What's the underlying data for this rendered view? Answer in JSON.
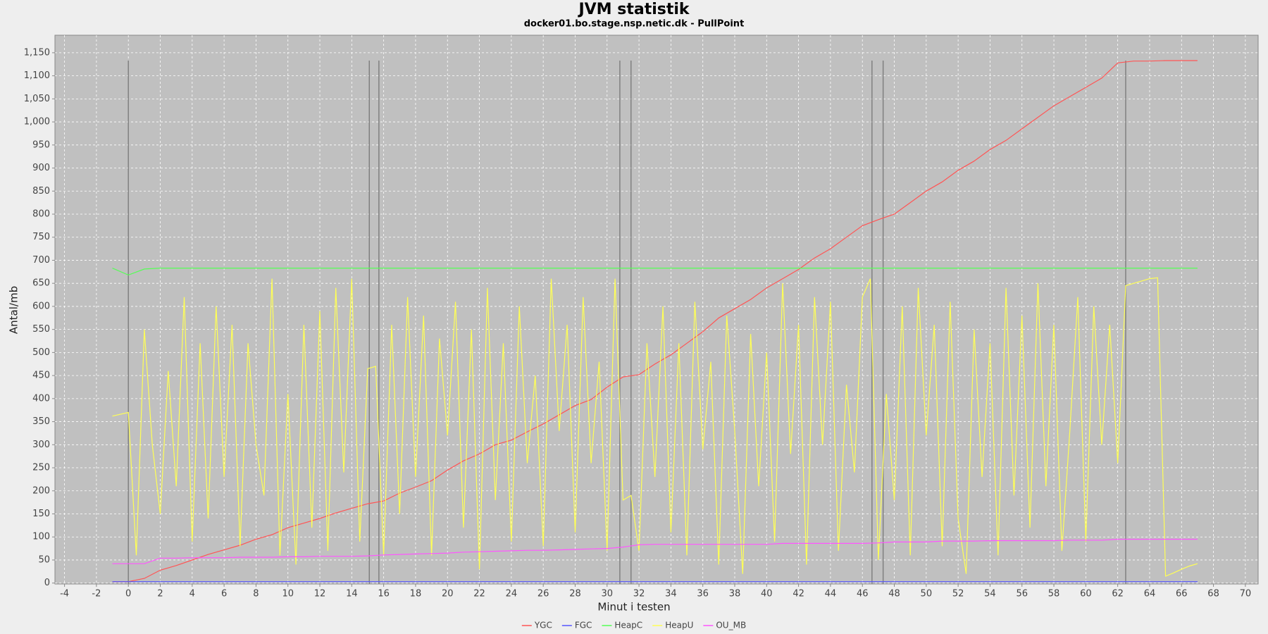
{
  "chart_data": {
    "type": "line",
    "title": "JVM statistik",
    "subtitle": "docker01.bo.stage.nsp.netic.dk - PullPoint",
    "xlabel": "Minut i testen",
    "ylabel": "Antal/mb",
    "xlim": [
      -4.6,
      70.8
    ],
    "ylim": [
      -2,
      1188
    ],
    "xticks": [
      -4,
      -2,
      0,
      2,
      4,
      6,
      8,
      10,
      12,
      14,
      16,
      18,
      20,
      22,
      24,
      26,
      28,
      30,
      32,
      34,
      36,
      38,
      40,
      42,
      44,
      46,
      48,
      50,
      52,
      54,
      56,
      58,
      60,
      62,
      64,
      66,
      68,
      70
    ],
    "yticks": [
      0,
      50,
      100,
      150,
      200,
      250,
      300,
      350,
      400,
      450,
      500,
      550,
      600,
      650,
      700,
      750,
      800,
      850,
      900,
      950,
      {
        "value": 1000,
        "label": "1,000"
      },
      {
        "value": 1050,
        "label": "1,050"
      },
      {
        "value": 1100,
        "label": "1,100"
      },
      {
        "value": 1150,
        "label": "1,150"
      }
    ],
    "grid": true,
    "legend": "bottom",
    "markers": [
      0,
      15.1,
      15.7,
      30.8,
      31.5,
      46.6,
      47.3,
      62.5
    ],
    "x": [
      -1,
      0,
      1,
      2,
      3,
      4,
      5,
      6,
      7,
      8,
      9,
      10,
      11,
      12,
      13,
      14,
      15,
      16,
      17,
      18,
      19,
      20,
      21,
      22,
      23,
      24,
      25,
      26,
      27,
      28,
      29,
      30,
      31,
      32,
      33,
      34,
      35,
      36,
      37,
      38,
      39,
      40,
      41,
      42,
      43,
      44,
      45,
      46,
      47,
      48,
      49,
      50,
      51,
      52,
      53,
      54,
      55,
      56,
      57,
      58,
      59,
      60,
      61,
      62,
      63,
      64,
      65,
      66,
      67
    ],
    "series": [
      {
        "name": "YGC",
        "color": "#ff5555",
        "values": [
          3,
          3,
          10,
          28,
          38,
          50,
          62,
          72,
          82,
          95,
          105,
          120,
          130,
          140,
          152,
          162,
          172,
          178,
          195,
          208,
          222,
          245,
          265,
          280,
          300,
          310,
          328,
          345,
          365,
          385,
          398,
          425,
          447,
          452,
          475,
          495,
          520,
          545,
          575,
          595,
          615,
          640,
          660,
          680,
          705,
          725,
          750,
          775,
          788,
          800,
          825,
          850,
          870,
          895,
          915,
          940,
          960,
          985,
          1010,
          1035,
          1055,
          1075,
          1095,
          1128,
          1132,
          1132,
          1133,
          1133,
          1133
        ]
      },
      {
        "name": "FGC",
        "color": "#5555ff",
        "values": [
          3,
          3,
          3,
          3,
          3,
          3,
          3,
          3,
          3,
          3,
          3,
          3,
          3,
          3,
          3,
          3,
          3,
          3,
          3,
          3,
          3,
          3,
          3,
          3,
          3,
          3,
          3,
          3,
          3,
          3,
          3,
          3,
          3,
          3,
          3,
          3,
          3,
          3,
          3,
          3,
          3,
          3,
          3,
          3,
          3,
          3,
          3,
          3,
          3,
          3,
          3,
          3,
          3,
          3,
          3,
          3,
          3,
          3,
          3,
          3,
          3,
          3,
          3,
          3,
          3,
          3,
          3,
          3,
          3
        ]
      },
      {
        "name": "HeapC",
        "color": "#55ff55",
        "values": [
          683,
          668,
          681,
          683,
          683,
          683,
          683,
          683,
          683,
          683,
          683,
          683,
          683,
          683,
          683,
          683,
          683,
          683,
          683,
          683,
          683,
          683,
          683,
          683,
          683,
          683,
          683,
          683,
          683,
          683,
          683,
          683,
          683,
          683,
          683,
          683,
          683,
          683,
          683,
          683,
          683,
          683,
          683,
          683,
          683,
          683,
          683,
          683,
          683,
          683,
          683,
          683,
          683,
          683,
          683,
          683,
          683,
          683,
          683,
          683,
          683,
          683,
          683,
          683,
          683,
          683,
          683,
          683,
          683
        ]
      },
      {
        "name": "HeapU",
        "color": "#ffff55",
        "x": [
          -1,
          -0.5,
          0,
          0.5,
          1,
          1.5,
          2,
          2.5,
          3,
          3.5,
          4,
          4.5,
          5,
          5.5,
          6,
          6.5,
          7,
          7.5,
          8,
          8.5,
          9,
          9.5,
          10,
          10.5,
          11,
          11.5,
          12,
          12.5,
          13,
          13.5,
          14,
          14.5,
          15,
          15.5,
          16,
          16.5,
          17,
          17.5,
          18,
          18.5,
          19,
          19.5,
          20,
          20.5,
          21,
          21.5,
          22,
          22.5,
          23,
          23.5,
          24,
          24.5,
          25,
          25.5,
          26,
          26.5,
          27,
          27.5,
          28,
          28.5,
          29,
          29.5,
          30,
          30.5,
          31,
          31.5,
          32,
          32.5,
          33,
          33.5,
          34,
          34.5,
          35,
          35.5,
          36,
          36.5,
          37,
          37.5,
          38,
          38.5,
          39,
          39.5,
          40,
          40.5,
          41,
          41.5,
          42,
          42.5,
          43,
          43.5,
          44,
          44.5,
          45,
          45.5,
          46,
          46.5,
          47,
          47.5,
          48,
          48.5,
          49,
          49.5,
          50,
          50.5,
          51,
          51.5,
          52,
          52.5,
          53,
          53.5,
          54,
          54.5,
          55,
          55.5,
          56,
          56.5,
          57,
          57.5,
          58,
          58.5,
          59,
          59.5,
          60,
          60.5,
          61,
          61.5,
          62,
          62.5,
          63,
          63.5,
          64,
          64.5,
          65,
          65.5,
          66,
          66.5,
          67
        ],
        "values": [
          362,
          366,
          370,
          60,
          550,
          300,
          150,
          460,
          210,
          620,
          90,
          520,
          140,
          600,
          230,
          560,
          80,
          520,
          300,
          190,
          660,
          60,
          410,
          40,
          560,
          120,
          590,
          70,
          640,
          240,
          660,
          90,
          465,
          470,
          60,
          560,
          150,
          620,
          230,
          580,
          60,
          530,
          320,
          610,
          120,
          550,
          30,
          640,
          180,
          520,
          90,
          600,
          260,
          450,
          80,
          660,
          330,
          560,
          110,
          620,
          260,
          480,
          70,
          660,
          180,
          190,
          70,
          520,
          230,
          600,
          110,
          520,
          60,
          610,
          290,
          480,
          40,
          580,
          330,
          20,
          540,
          210,
          500,
          90,
          650,
          280,
          560,
          40,
          620,
          300,
          610,
          70,
          430,
          240,
          620,
          660,
          50,
          410,
          180,
          600,
          60,
          640,
          320,
          560,
          80,
          610,
          140,
          20,
          550,
          230,
          520,
          60,
          640,
          190,
          580,
          120,
          650,
          210,
          560,
          70,
          330,
          620,
          90,
          600,
          300,
          560,
          260,
          645,
          650,
          655,
          660,
          662,
          15,
          22,
          30,
          37,
          42
        ]
      },
      {
        "name": "OU_MB",
        "color": "#ff55ff",
        "values": [
          42,
          42,
          42,
          54,
          54,
          55,
          55,
          55,
          56,
          56,
          56,
          57,
          57,
          58,
          58,
          58,
          59,
          61,
          62,
          63,
          64,
          65,
          67,
          68,
          69,
          70,
          71,
          71,
          72,
          73,
          74,
          75,
          78,
          83,
          84,
          84,
          84,
          84,
          84,
          84,
          84,
          84,
          86,
          86,
          86,
          86,
          86,
          86,
          87,
          89,
          89,
          89,
          91,
          91,
          91,
          92,
          92,
          92,
          92,
          92,
          93,
          93,
          93,
          95,
          95,
          95,
          95,
          95,
          95
        ]
      }
    ]
  }
}
